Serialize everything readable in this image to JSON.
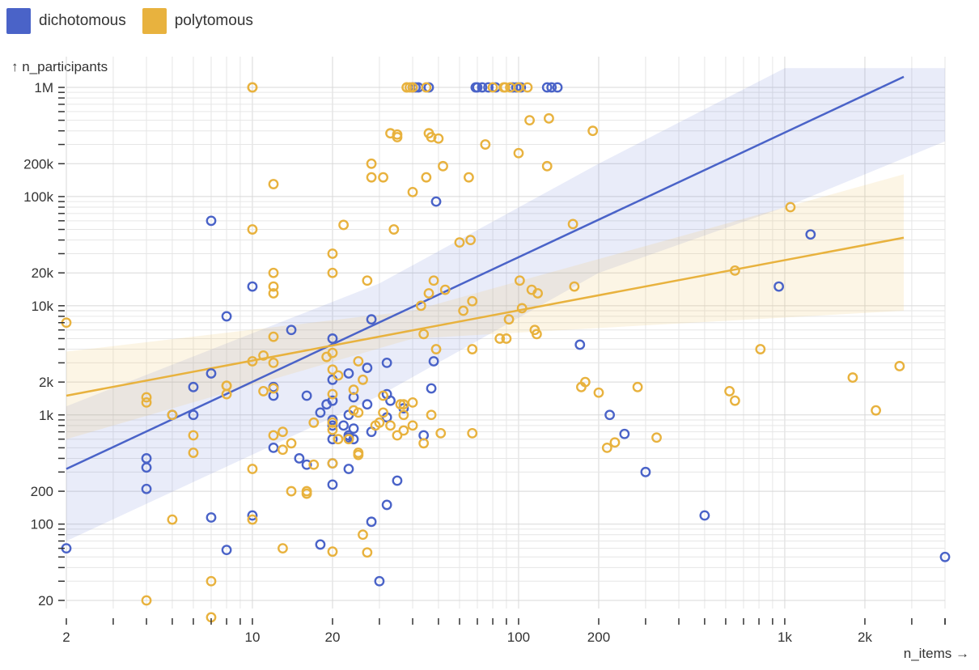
{
  "legend": {
    "items": [
      {
        "label": "dichotomous",
        "color": "#4a63c8"
      },
      {
        "label": "polytomous",
        "color": "#e8b23e"
      }
    ]
  },
  "chart_data": {
    "type": "scatter",
    "xlabel": "n_items →",
    "ylabel": "↑ n_participants",
    "x_scale": "log",
    "y_scale": "log",
    "xlim": [
      2,
      4000
    ],
    "ylim": [
      12,
      1500000
    ],
    "grid": true,
    "legend_position": "top-left",
    "x_tick_labels": [
      {
        "value": 2,
        "label": "2"
      },
      {
        "value": 10,
        "label": "10"
      },
      {
        "value": 20,
        "label": "20"
      },
      {
        "value": 100,
        "label": "100"
      },
      {
        "value": 200,
        "label": "200"
      },
      {
        "value": 1000,
        "label": "1k"
      },
      {
        "value": 2000,
        "label": "2k"
      }
    ],
    "y_tick_labels": [
      {
        "value": 20,
        "label": "20"
      },
      {
        "value": 100,
        "label": "100"
      },
      {
        "value": 200,
        "label": "200"
      },
      {
        "value": 1000,
        "label": "1k"
      },
      {
        "value": 2000,
        "label": "2k"
      },
      {
        "value": 10000,
        "label": "10k"
      },
      {
        "value": 20000,
        "label": "20k"
      },
      {
        "value": 100000,
        "label": "100k"
      },
      {
        "value": 200000,
        "label": "200k"
      },
      {
        "value": 1000000,
        "label": "1M"
      }
    ],
    "series": [
      {
        "name": "dichotomous",
        "color": "#4a63c8",
        "points": [
          [
            2,
            60
          ],
          [
            4,
            400
          ],
          [
            4,
            330
          ],
          [
            4,
            210
          ],
          [
            5,
            1000
          ],
          [
            6,
            1000
          ],
          [
            6,
            1800
          ],
          [
            7,
            2400
          ],
          [
            7,
            60000
          ],
          [
            7,
            115
          ],
          [
            8,
            8000
          ],
          [
            8,
            58
          ],
          [
            10,
            15000
          ],
          [
            10,
            120
          ],
          [
            12,
            500
          ],
          [
            12,
            1500
          ],
          [
            12,
            1800
          ],
          [
            14,
            6000
          ],
          [
            15,
            400
          ],
          [
            16,
            350
          ],
          [
            16,
            1500
          ],
          [
            18,
            1050
          ],
          [
            18,
            65
          ],
          [
            19,
            1250
          ],
          [
            20,
            2100
          ],
          [
            20,
            5000
          ],
          [
            20,
            1350
          ],
          [
            20,
            900
          ],
          [
            20,
            800
          ],
          [
            20,
            600
          ],
          [
            20,
            230
          ],
          [
            20,
            360
          ],
          [
            22,
            800
          ],
          [
            23,
            650
          ],
          [
            23,
            620
          ],
          [
            23,
            320
          ],
          [
            23,
            2400
          ],
          [
            23,
            1000
          ],
          [
            24,
            1450
          ],
          [
            24,
            750
          ],
          [
            24,
            600
          ],
          [
            27,
            1250
          ],
          [
            27,
            2700
          ],
          [
            28,
            7500
          ],
          [
            28,
            700
          ],
          [
            28,
            105
          ],
          [
            30,
            30
          ],
          [
            32,
            3000
          ],
          [
            32,
            1550
          ],
          [
            32,
            950
          ],
          [
            32,
            150
          ],
          [
            33,
            1350
          ],
          [
            35,
            250
          ],
          [
            37,
            1150
          ],
          [
            40,
            1000000
          ],
          [
            41,
            1000000
          ],
          [
            42,
            1000000
          ],
          [
            46,
            1000000
          ],
          [
            47,
            1750
          ],
          [
            48,
            3100
          ],
          [
            49,
            90000
          ],
          [
            44,
            650
          ],
          [
            69,
            1000000
          ],
          [
            70,
            1000000
          ],
          [
            73,
            1000000
          ],
          [
            77,
            1000000
          ],
          [
            82,
            1000000
          ],
          [
            95,
            1000000
          ],
          [
            98,
            1000000
          ],
          [
            102,
            1000000
          ],
          [
            128,
            1000000
          ],
          [
            133,
            1000000
          ],
          [
            140,
            1000000
          ],
          [
            170,
            4400
          ],
          [
            220,
            1000
          ],
          [
            250,
            670
          ],
          [
            300,
            300
          ],
          [
            500,
            120
          ],
          [
            950,
            15000
          ],
          [
            1250,
            45000
          ],
          [
            4000,
            50
          ]
        ],
        "trend": {
          "x": [
            2,
            2800
          ],
          "y": [
            320,
            1250000
          ]
        },
        "band": {
          "x": [
            2,
            30,
            200,
            1000,
            4000
          ],
          "upper": [
            1200,
            16000,
            200000,
            1500000,
            1500000
          ],
          "lower": [
            70,
            1500,
            20000,
            80000,
            320000
          ]
        }
      },
      {
        "name": "polytomous",
        "color": "#e8b23e",
        "points": [
          [
            2,
            7000
          ],
          [
            4,
            1450
          ],
          [
            4,
            1300
          ],
          [
            4,
            20
          ],
          [
            5,
            1000
          ],
          [
            5,
            110
          ],
          [
            6,
            650
          ],
          [
            6,
            450
          ],
          [
            7,
            30
          ],
          [
            7,
            14
          ],
          [
            8,
            1850
          ],
          [
            8,
            1850
          ],
          [
            8,
            1550
          ],
          [
            10,
            1000000
          ],
          [
            10,
            1000000
          ],
          [
            10,
            50000
          ],
          [
            10,
            3100
          ],
          [
            10,
            320
          ],
          [
            10,
            110
          ],
          [
            11,
            3500
          ],
          [
            11,
            1650
          ],
          [
            12,
            130000
          ],
          [
            12,
            20000
          ],
          [
            12,
            15000
          ],
          [
            12,
            13000
          ],
          [
            12,
            5200
          ],
          [
            12,
            3000
          ],
          [
            12,
            1750
          ],
          [
            12,
            650
          ],
          [
            13,
            700
          ],
          [
            13,
            480
          ],
          [
            13,
            60
          ],
          [
            14,
            550
          ],
          [
            14,
            200
          ],
          [
            16,
            200
          ],
          [
            16,
            190
          ],
          [
            17,
            350
          ],
          [
            17,
            850
          ],
          [
            19,
            3400
          ],
          [
            20,
            30000
          ],
          [
            20,
            20000
          ],
          [
            20,
            3700
          ],
          [
            20,
            2600
          ],
          [
            20,
            1550
          ],
          [
            20,
            850
          ],
          [
            20,
            730
          ],
          [
            20,
            360
          ],
          [
            20,
            56
          ],
          [
            21,
            2300
          ],
          [
            21,
            600
          ],
          [
            22,
            55000
          ],
          [
            23,
            600
          ],
          [
            24,
            1700
          ],
          [
            24,
            1100
          ],
          [
            25,
            3100
          ],
          [
            25,
            1050
          ],
          [
            25,
            450
          ],
          [
            25,
            430
          ],
          [
            26,
            2100
          ],
          [
            26,
            80
          ],
          [
            27,
            17000
          ],
          [
            27,
            55
          ],
          [
            28,
            200000
          ],
          [
            28,
            150000
          ],
          [
            29,
            800
          ],
          [
            30,
            850
          ],
          [
            31,
            150000
          ],
          [
            31,
            1500
          ],
          [
            31,
            1050
          ],
          [
            33,
            380000
          ],
          [
            33,
            800
          ],
          [
            34,
            50000
          ],
          [
            35,
            370000
          ],
          [
            35,
            350000
          ],
          [
            35,
            650
          ],
          [
            36,
            1250
          ],
          [
            37,
            1000
          ],
          [
            37,
            1250
          ],
          [
            37,
            720
          ],
          [
            38,
            1000000
          ],
          [
            38,
            1000000
          ],
          [
            39,
            1000000
          ],
          [
            40,
            1000000
          ],
          [
            40,
            110000
          ],
          [
            40,
            1300
          ],
          [
            40,
            800
          ],
          [
            43,
            10000
          ],
          [
            44,
            5500
          ],
          [
            44,
            550
          ],
          [
            45,
            1000000
          ],
          [
            45,
            150000
          ],
          [
            46,
            13000
          ],
          [
            46,
            380000
          ],
          [
            47,
            350000
          ],
          [
            47,
            1000
          ],
          [
            48,
            17000
          ],
          [
            49,
            4000
          ],
          [
            50,
            340000
          ],
          [
            51,
            680
          ],
          [
            52,
            190000
          ],
          [
            53,
            14000
          ],
          [
            60,
            38000
          ],
          [
            62,
            9000
          ],
          [
            65,
            150000
          ],
          [
            66,
            40000
          ],
          [
            67,
            4000
          ],
          [
            67,
            11000
          ],
          [
            67,
            680
          ],
          [
            75,
            300000
          ],
          [
            80,
            1000000
          ],
          [
            85,
            5000
          ],
          [
            88,
            1000000
          ],
          [
            89,
            1000000
          ],
          [
            90,
            5000
          ],
          [
            92,
            7500
          ],
          [
            93,
            1000000
          ],
          [
            100,
            250000
          ],
          [
            100,
            1000000
          ],
          [
            101,
            17000
          ],
          [
            103,
            9500
          ],
          [
            108,
            1000000
          ],
          [
            110,
            500000
          ],
          [
            112,
            14000
          ],
          [
            115,
            6000
          ],
          [
            117,
            5500
          ],
          [
            118,
            13000
          ],
          [
            128,
            190000
          ],
          [
            130,
            520000
          ],
          [
            160,
            56000
          ],
          [
            162,
            15000
          ],
          [
            172,
            1800
          ],
          [
            178,
            2000
          ],
          [
            190,
            400000
          ],
          [
            200,
            1600
          ],
          [
            215,
            500
          ],
          [
            230,
            560
          ],
          [
            280,
            1800
          ],
          [
            330,
            620
          ],
          [
            620,
            1650
          ],
          [
            650,
            21000
          ],
          [
            650,
            1350
          ],
          [
            810,
            4000
          ],
          [
            1050,
            80000
          ],
          [
            1800,
            2200
          ],
          [
            2200,
            1100
          ],
          [
            2700,
            2800
          ]
        ],
        "trend": {
          "x": [
            2,
            2800
          ],
          "y": [
            1500,
            42000
          ]
        },
        "band": {
          "x": [
            2,
            40,
            2800
          ],
          "upper": [
            3800,
            9000,
            160000
          ],
          "lower": [
            600,
            5000,
            9000
          ]
        }
      }
    ]
  }
}
